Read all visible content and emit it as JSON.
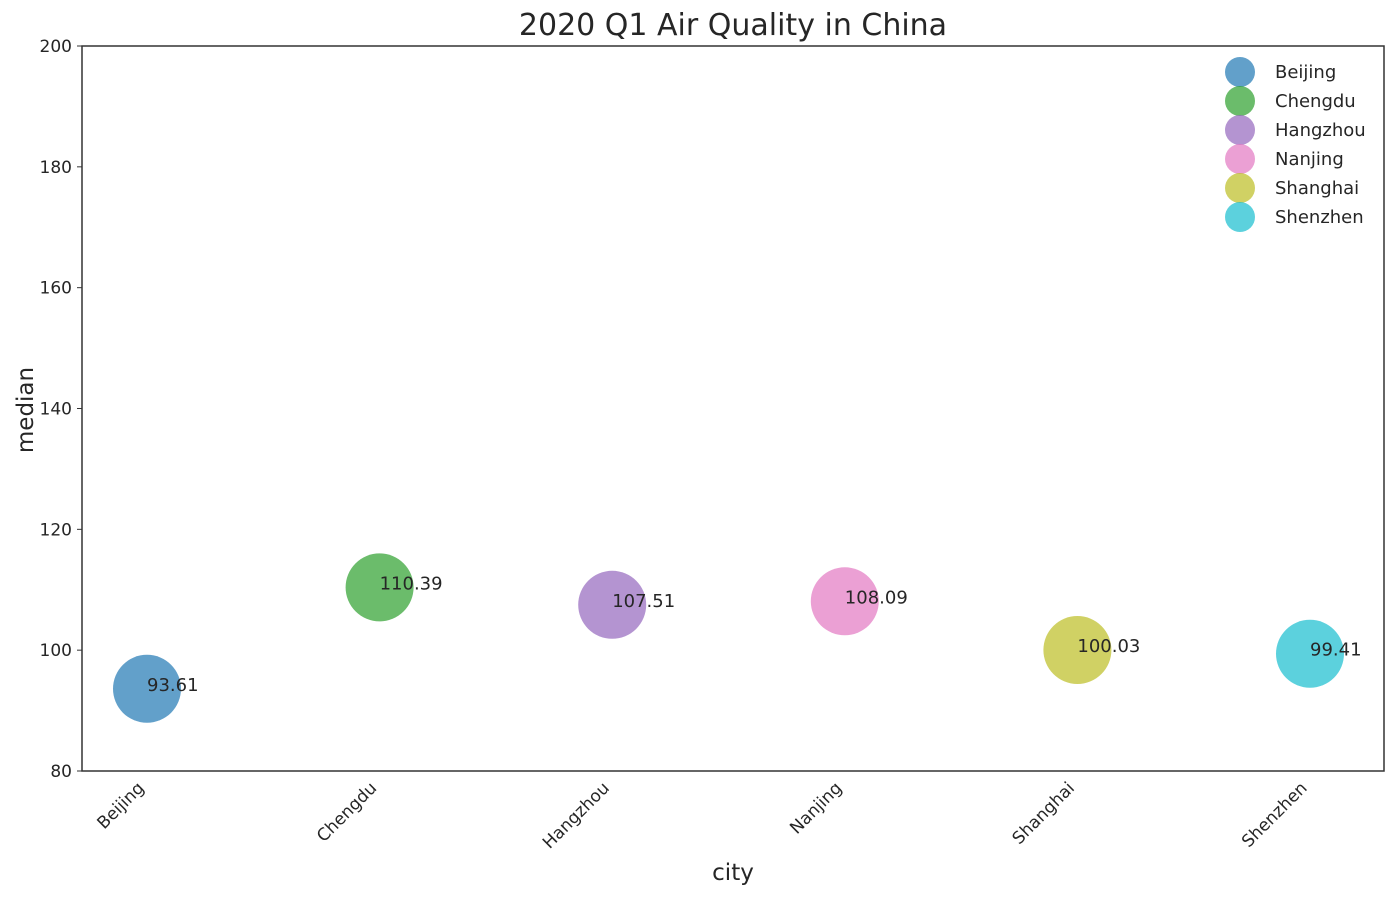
{
  "chart_data": {
    "type": "scatter",
    "title": "2020 Q1 Air Quality in China",
    "xlabel": "city",
    "ylabel": "median",
    "categories": [
      "Beijing",
      "Chengdu",
      "Hangzhou",
      "Nanjing",
      "Shanghai",
      "Shenzhen"
    ],
    "values": [
      93.61,
      110.39,
      107.51,
      108.09,
      100.03,
      99.41
    ],
    "labels": [
      "93.61",
      "110.39",
      "107.51",
      "108.09",
      "100.03",
      "99.41"
    ],
    "y_ticks": [
      "80",
      "100",
      "120",
      "140",
      "160",
      "180",
      "200"
    ],
    "ylim": [
      80,
      200
    ],
    "colors": [
      "#1f77b4",
      "#2ca02c",
      "#9467bd",
      "#e377c2",
      "#bcbd22",
      "#17becf"
    ],
    "legend": {
      "placement": "top-right",
      "entries": [
        "Beijing",
        "Chengdu",
        "Hangzhou",
        "Nanjing",
        "Shanghai",
        "Shenzhen"
      ]
    },
    "grid": false
  }
}
